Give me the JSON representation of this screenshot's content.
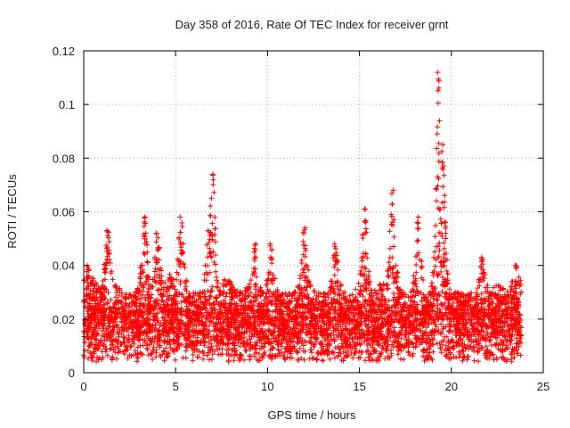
{
  "chart_data": {
    "type": "scatter",
    "title": "Day 358 of 2016, Rate Of TEC Index for receiver grnt",
    "xlabel": "GPS time / hours",
    "ylabel": "ROTI / TECUs",
    "xlim": [
      0,
      25
    ],
    "ylim": [
      0,
      0.12
    ],
    "xticks": [
      0,
      5,
      10,
      15,
      20,
      25
    ],
    "yticks": [
      0,
      0.02,
      0.04,
      0.06,
      0.08,
      0.1,
      0.12
    ],
    "xtick_labels": [
      "0",
      "5",
      "10",
      "15",
      "20",
      "25"
    ],
    "ytick_labels": [
      "0",
      "0.02",
      "0.04",
      "0.06",
      "0.08",
      "0.1",
      "0.12"
    ],
    "grid": true,
    "marker": "plus",
    "color": "#ff0000",
    "series": [
      {
        "name": "ROTI",
        "x_range": [
          0,
          23.8
        ],
        "baseline_min": 0.004,
        "baseline_max": 0.03,
        "peaks": [
          {
            "x": 0.2,
            "y": 0.04
          },
          {
            "x": 1.3,
            "y": 0.053
          },
          {
            "x": 3.3,
            "y": 0.058
          },
          {
            "x": 4.0,
            "y": 0.052
          },
          {
            "x": 5.3,
            "y": 0.058
          },
          {
            "x": 6.8,
            "y": 0.053
          },
          {
            "x": 7.0,
            "y": 0.074
          },
          {
            "x": 9.3,
            "y": 0.048
          },
          {
            "x": 10.2,
            "y": 0.048
          },
          {
            "x": 12.0,
            "y": 0.054
          },
          {
            "x": 13.7,
            "y": 0.048
          },
          {
            "x": 15.3,
            "y": 0.061
          },
          {
            "x": 16.8,
            "y": 0.068
          },
          {
            "x": 18.2,
            "y": 0.058
          },
          {
            "x": 19.3,
            "y": 0.112
          },
          {
            "x": 19.5,
            "y": 0.085
          },
          {
            "x": 21.7,
            "y": 0.043
          },
          {
            "x": 23.5,
            "y": 0.04
          }
        ]
      }
    ]
  }
}
